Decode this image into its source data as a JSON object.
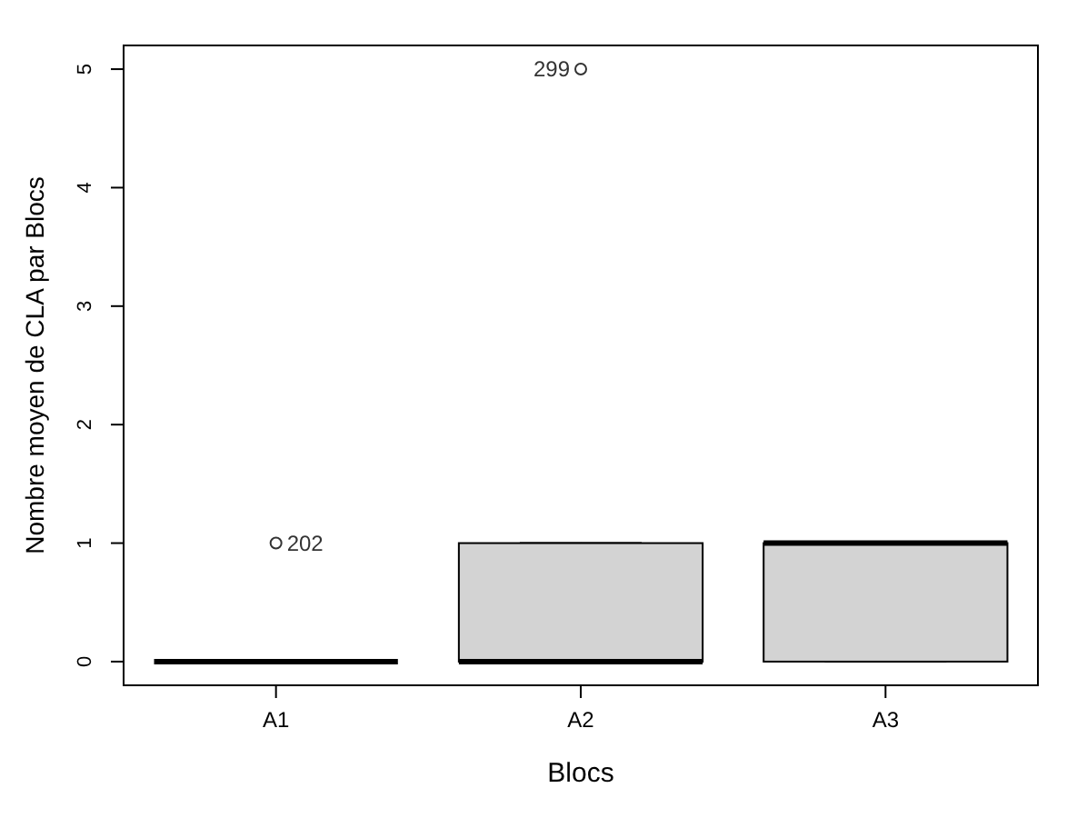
{
  "chart_data": {
    "type": "box",
    "xlabel": "Blocs",
    "ylabel": "Nombre moyen de CLA par Blocs",
    "categories": [
      "A1",
      "A2",
      "A3"
    ],
    "boxes": [
      {
        "low": 0,
        "q1": 0,
        "median": 0,
        "q3": 0,
        "high": 0,
        "outliers": [
          1
        ]
      },
      {
        "low": 0,
        "q1": 0,
        "median": 0,
        "q3": 1,
        "high": 1,
        "outliers": [
          5
        ]
      },
      {
        "low": 0,
        "q1": 0,
        "median": 1,
        "q3": 1,
        "high": 1
      }
    ],
    "colors": [
      "#000000",
      "#d3d3d3",
      "#d3d3d3"
    ],
    "ylim": [
      -0.2,
      5.2
    ],
    "yticks": [
      0,
      1,
      2,
      3,
      4,
      5
    ],
    "annotations": [
      "202",
      "299"
    ]
  }
}
